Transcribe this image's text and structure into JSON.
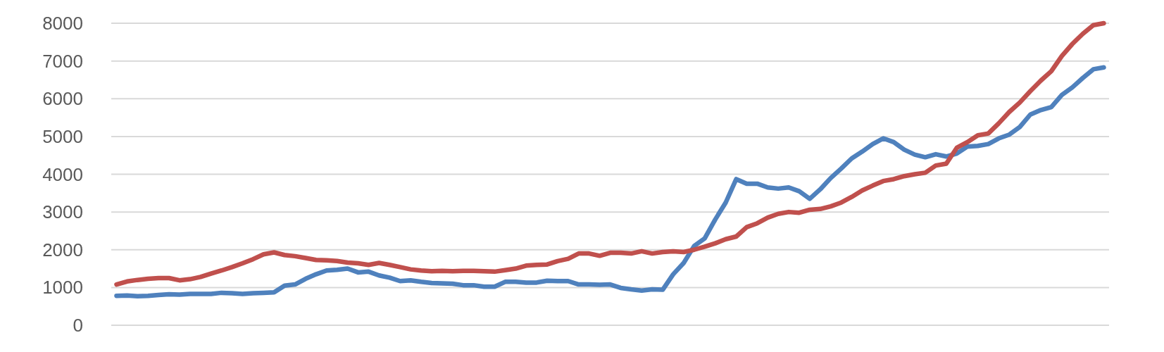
{
  "chart_data": {
    "type": "line",
    "categories": [
      null,
      null,
      null,
      null,
      null,
      null,
      null,
      null,
      null,
      null,
      null,
      null,
      null,
      null,
      null,
      null,
      null,
      null,
      null,
      null,
      null,
      null,
      null,
      null,
      null,
      null,
      null,
      null,
      null,
      null,
      null,
      null,
      null,
      null,
      null,
      null,
      null,
      null,
      null,
      null,
      null,
      null,
      null,
      null,
      null,
      null,
      null,
      null,
      null,
      null,
      null,
      null,
      null,
      null,
      null,
      null,
      null,
      null,
      null,
      null,
      null,
      null,
      null,
      null,
      null,
      null,
      null,
      null,
      null,
      null,
      null,
      null,
      null,
      null,
      null,
      null,
      null,
      null,
      null,
      null,
      null,
      null,
      null,
      null,
      null,
      null,
      null,
      null,
      null,
      null,
      null,
      null,
      null,
      null,
      null
    ],
    "series": [
      {
        "color": "#4f81bd",
        "values": [
          780,
          790,
          770,
          780,
          800,
          820,
          810,
          830,
          830,
          830,
          860,
          850,
          830,
          850,
          860,
          870,
          1050,
          1080,
          1230,
          1350,
          1450,
          1470,
          1500,
          1400,
          1420,
          1320,
          1260,
          1170,
          1190,
          1150,
          1120,
          1110,
          1100,
          1060,
          1060,
          1020,
          1020,
          1150,
          1150,
          1130,
          1130,
          1180,
          1170,
          1170,
          1080,
          1080,
          1070,
          1080,
          990,
          950,
          920,
          950,
          940,
          1350,
          1650,
          2100,
          2300,
          2800,
          3250,
          3870,
          3750,
          3750,
          3650,
          3620,
          3650,
          3550,
          3350,
          3600,
          3900,
          4150,
          4420,
          4600,
          4800,
          4950,
          4850,
          4650,
          4520,
          4450,
          4530,
          4470,
          4550,
          4730,
          4750,
          4800,
          4950,
          5050,
          5250,
          5580,
          5700,
          5780,
          6100,
          6300,
          6550,
          6780,
          6830
        ]
      },
      {
        "color": "#c0504d",
        "values": [
          1080,
          1160,
          1200,
          1230,
          1250,
          1250,
          1190,
          1220,
          1280,
          1370,
          1450,
          1540,
          1640,
          1750,
          1880,
          1930,
          1860,
          1830,
          1780,
          1730,
          1720,
          1700,
          1660,
          1640,
          1600,
          1650,
          1600,
          1540,
          1480,
          1450,
          1430,
          1440,
          1430,
          1440,
          1440,
          1430,
          1420,
          1460,
          1500,
          1580,
          1600,
          1610,
          1700,
          1760,
          1900,
          1900,
          1840,
          1920,
          1920,
          1900,
          1960,
          1900,
          1940,
          1960,
          1940,
          2000,
          2080,
          2170,
          2280,
          2350,
          2600,
          2700,
          2850,
          2950,
          3000,
          2980,
          3060,
          3080,
          3150,
          3250,
          3400,
          3570,
          3700,
          3820,
          3870,
          3950,
          4000,
          4040,
          4230,
          4280,
          4700,
          4850,
          5030,
          5080,
          5350,
          5650,
          5900,
          6200,
          6480,
          6730,
          7130,
          7450,
          7720,
          7950,
          8000
        ]
      }
    ],
    "ylim": [
      0,
      8000
    ],
    "yticks": [
      0,
      1000,
      2000,
      3000,
      4000,
      5000,
      6000,
      7000,
      8000
    ],
    "grid": "y",
    "marker": "none",
    "line_style": "solid",
    "tick_labels": "y"
  }
}
